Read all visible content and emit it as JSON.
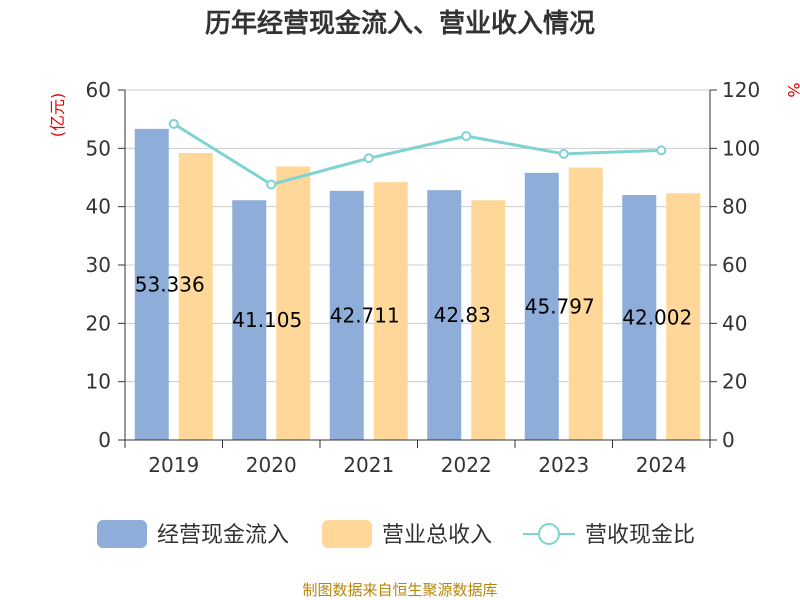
{
  "chart_data": {
    "type": "bar",
    "title": "历年经营现金流入、营业收入情况",
    "categories": [
      "2019",
      "2020",
      "2021",
      "2022",
      "2023",
      "2024"
    ],
    "series": [
      {
        "name": "经营现金流入",
        "type": "bar",
        "axis": "left",
        "color": "#8eadd9",
        "values": [
          53.336,
          41.105,
          42.711,
          42.83,
          45.797,
          42.002
        ]
      },
      {
        "name": "营业总收入",
        "type": "bar",
        "axis": "left",
        "color": "#ffd899",
        "values": [
          49.2,
          46.9,
          44.2,
          41.1,
          46.7,
          42.3
        ]
      },
      {
        "name": "营收现金比",
        "type": "line",
        "axis": "right",
        "color": "#7fd3d3",
        "values": [
          108.4,
          87.6,
          96.6,
          104.2,
          98.1,
          99.3
        ]
      }
    ],
    "data_labels": [
      "53.336",
      "41.105",
      "42.711",
      "42.83",
      "45.797",
      "42.002"
    ],
    "yleft": {
      "label": "(亿元)",
      "ylim": [
        0,
        60
      ],
      "ticks": [
        0,
        10,
        20,
        30,
        40,
        50,
        60
      ]
    },
    "yright": {
      "label": "%",
      "ylim": [
        0,
        120
      ],
      "ticks": [
        0,
        20,
        40,
        60,
        80,
        100,
        120
      ]
    },
    "grid": true,
    "legend_position": "bottom"
  },
  "source": "制图数据来自恒生聚源数据库"
}
